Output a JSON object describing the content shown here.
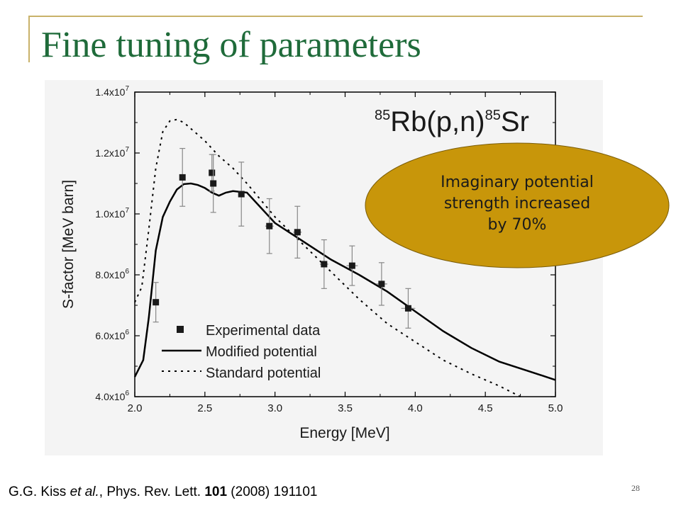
{
  "slide": {
    "title": "Fine tuning of parameters",
    "page_number": "28"
  },
  "citation": {
    "authors": "G.G. Kiss ",
    "etal": "et al.",
    "journal": ", Phys. Rev. Lett. ",
    "volume": "101",
    "rest": " (2008) 191101"
  },
  "callout": {
    "line1": "Imaginary potential",
    "line2": "strength increased",
    "line3": "by 70%",
    "color": "#c8960a"
  },
  "chart_data": {
    "type": "scatter",
    "reaction": {
      "a1": "85",
      "mid": "Rb(p,n)",
      "a2": "85",
      "end": "Sr"
    },
    "xlabel": "Energy [MeV]",
    "ylabel": "S-factor [MeV barn]",
    "xlim": [
      2.0,
      5.0
    ],
    "ylim": [
      4000000.0,
      14000000.0
    ],
    "x_ticks": [
      "2.0",
      "2.5",
      "3.0",
      "3.5",
      "4.0",
      "4.5",
      "5.0"
    ],
    "y_ticks": [
      {
        "m": "4.0x10",
        "e": "6"
      },
      {
        "m": "6.0x10",
        "e": "6"
      },
      {
        "m": "8.0x10",
        "e": "6"
      },
      {
        "m": "1.0x10",
        "e": "7"
      },
      {
        "m": "1.2x10",
        "e": "7"
      },
      {
        "m": "1.4x10",
        "e": "7"
      }
    ],
    "legend_position": "lower-left",
    "legend": {
      "experimental": "Experimental data",
      "modified": "Modified potential",
      "standard": "Standard potential"
    },
    "experimental": [
      {
        "x": 2.15,
        "y": 7100000.0,
        "yerr": 650000.0,
        "xerr": 0.0
      },
      {
        "x": 2.34,
        "y": 11200000.0,
        "yerr": 950000.0,
        "xerr": 0.0
      },
      {
        "x": 2.55,
        "y": 11350000.0,
        "yerr": 600000.0,
        "xerr": 0.02
      },
      {
        "x": 2.56,
        "y": 11000000.0,
        "yerr": 950000.0,
        "xerr": 0.0
      },
      {
        "x": 2.76,
        "y": 10650000.0,
        "yerr": 1050000.0,
        "xerr": 0.02
      },
      {
        "x": 2.96,
        "y": 9600000.0,
        "yerr": 900000.0,
        "xerr": 0.03
      },
      {
        "x": 3.16,
        "y": 9400000.0,
        "yerr": 850000.0,
        "xerr": 0.03
      },
      {
        "x": 3.35,
        "y": 8350000.0,
        "yerr": 800000.0,
        "xerr": 0.03
      },
      {
        "x": 3.55,
        "y": 8300000.0,
        "yerr": 650000.0,
        "xerr": 0.04
      },
      {
        "x": 3.76,
        "y": 7700000.0,
        "yerr": 700000.0,
        "xerr": 0.04
      },
      {
        "x": 3.95,
        "y": 6900000.0,
        "yerr": 650000.0,
        "xerr": 0.05
      }
    ],
    "modified": [
      [
        2.0,
        4650000.0
      ],
      [
        2.06,
        5200000.0
      ],
      [
        2.1,
        6600000.0
      ],
      [
        2.15,
        8800000.0
      ],
      [
        2.2,
        9900000.0
      ],
      [
        2.25,
        10400000.0
      ],
      [
        2.3,
        10800000.0
      ],
      [
        2.35,
        10980000.0
      ],
      [
        2.4,
        11000000.0
      ],
      [
        2.45,
        10950000.0
      ],
      [
        2.5,
        10850000.0
      ],
      [
        2.55,
        10700000.0
      ],
      [
        2.6,
        10600000.0
      ],
      [
        2.65,
        10700000.0
      ],
      [
        2.7,
        10750000.0
      ],
      [
        2.8,
        10700000.0
      ],
      [
        2.9,
        10200000.0
      ],
      [
        3.0,
        9700000.0
      ],
      [
        3.2,
        9100000.0
      ],
      [
        3.4,
        8500000.0
      ],
      [
        3.6,
        8000000.0
      ],
      [
        3.8,
        7450000.0
      ],
      [
        4.0,
        6800000.0
      ],
      [
        4.2,
        6150000.0
      ],
      [
        4.4,
        5600000.0
      ],
      [
        4.6,
        5150000.0
      ],
      [
        4.8,
        4850000.0
      ],
      [
        5.0,
        4550000.0
      ]
    ],
    "standard": [
      [
        2.0,
        7100000.0
      ],
      [
        2.05,
        7600000.0
      ],
      [
        2.1,
        9500000.0
      ],
      [
        2.15,
        11500000.0
      ],
      [
        2.2,
        12700000.0
      ],
      [
        2.25,
        13050000.0
      ],
      [
        2.3,
        13100000.0
      ],
      [
        2.35,
        13000000.0
      ],
      [
        2.4,
        12800000.0
      ],
      [
        2.5,
        12400000.0
      ],
      [
        2.6,
        11900000.0
      ],
      [
        2.7,
        11500000.0
      ],
      [
        2.8,
        11000000.0
      ],
      [
        3.0,
        9900000.0
      ],
      [
        3.2,
        9000000.0
      ],
      [
        3.4,
        8100000.0
      ],
      [
        3.6,
        7200000.0
      ],
      [
        3.8,
        6400000.0
      ],
      [
        4.0,
        5800000.0
      ],
      [
        4.2,
        5200000.0
      ],
      [
        4.4,
        4750000.0
      ],
      [
        4.6,
        4350000.0
      ],
      [
        4.75,
        4000000.0
      ]
    ]
  }
}
